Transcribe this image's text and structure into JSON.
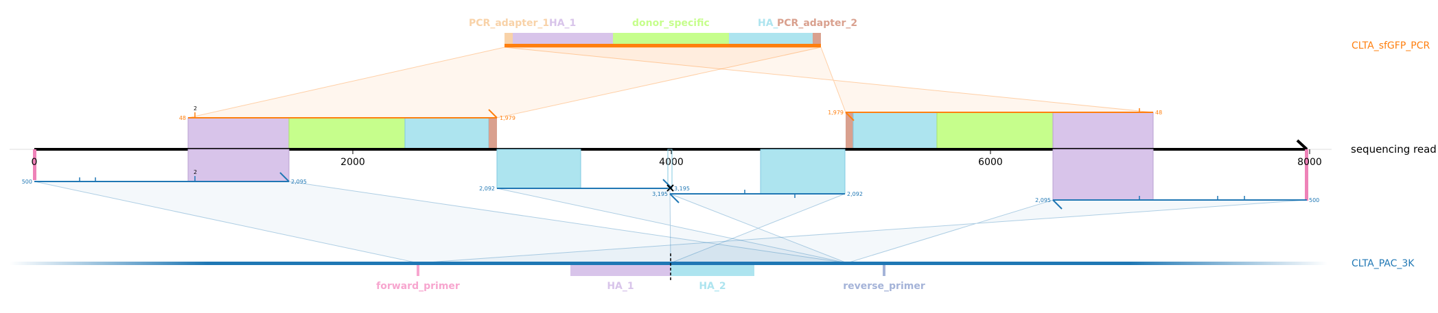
{
  "colors": {
    "pcr": "#ff7f0e",
    "pac": "#1f77b4",
    "pcr_adapter_1": "#f8d2a8",
    "pcr_adapter_2": "#d9a08e",
    "HA_1": "#d8c4ea",
    "donor_specific": "#c6fe8c",
    "HA_2": "#ade4ef",
    "forward_primer": "#f7a6cf",
    "reverse_primer": "#a4b3d8",
    "read_end": "#ee82b8"
  },
  "axis": {
    "name": "sequencing read",
    "range": [
      0,
      8000
    ],
    "ticks": [
      0,
      2000,
      4000,
      6000,
      8000
    ],
    "tick_labels": [
      "0",
      "2000",
      "4000",
      "6000",
      "8000"
    ]
  },
  "references": {
    "top": {
      "name": "CLTA_sfGFP_PCR",
      "features": [
        {
          "name": "PCR_adapter_1",
          "color_key": "pcr_adapter_1"
        },
        {
          "name": "HA_1",
          "color_key": "HA_1"
        },
        {
          "name": "donor_specific",
          "color_key": "donor_specific"
        },
        {
          "name": "HA_",
          "color_key": "HA_2"
        },
        {
          "name": "PCR_adapter_2",
          "color_key": "pcr_adapter_2"
        }
      ]
    },
    "bottom": {
      "name": "CLTA_PAC_3K",
      "features": [
        {
          "name": "forward_primer",
          "color_key": "forward_primer"
        },
        {
          "name": "HA_1",
          "color_key": "HA_1"
        },
        {
          "name": "HA_2",
          "color_key": "HA_2"
        },
        {
          "name": "reverse_primer",
          "color_key": "reverse_primer"
        }
      ]
    }
  },
  "alignments": {
    "pcr_fwd": {
      "start_label": "48",
      "end_label": "1,979",
      "mismatch": "2"
    },
    "pcr_rev": {
      "start_label": "1,979",
      "end_label": "48"
    },
    "pac_1": {
      "start_label": "500",
      "end_label": "2,095",
      "mismatch": "2"
    },
    "pac_2": {
      "start_label": "2,092",
      "end_label": "3,195"
    },
    "pac_3": {
      "start_label": "3,195",
      "end_label": "2,092"
    },
    "pac_4": {
      "start_label": "2,095",
      "end_label": "500"
    }
  }
}
